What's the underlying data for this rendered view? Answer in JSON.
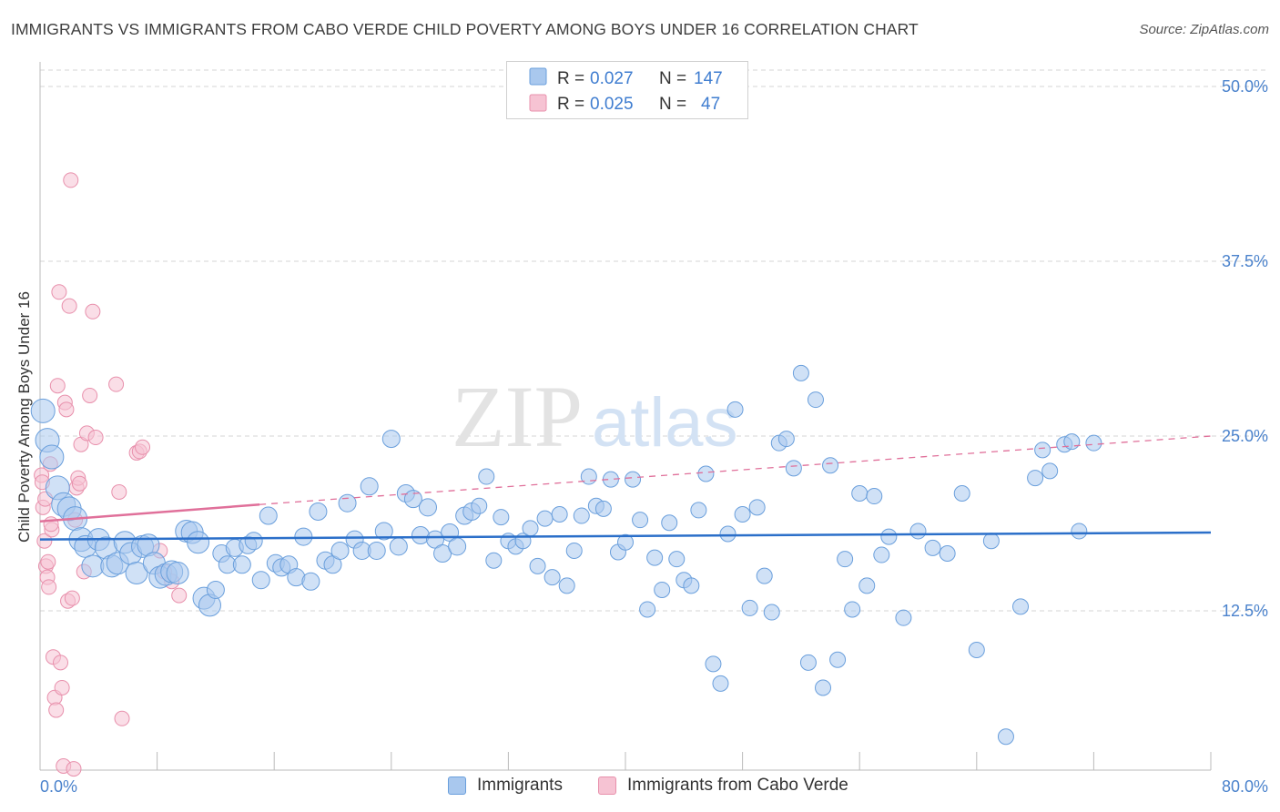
{
  "title": "IMMIGRANTS VS IMMIGRANTS FROM CABO VERDE CHILD POVERTY AMONG BOYS UNDER 16 CORRELATION CHART",
  "source": "Source: ZipAtlas.com",
  "watermark": {
    "zip": "ZIP",
    "atlas": "atlas"
  },
  "colors": {
    "blue_fill": "#a9c8ee",
    "blue_stroke": "#6a9fdc",
    "blue_line": "#2b6fc9",
    "pink_fill": "#f6c3d3",
    "pink_stroke": "#e890ac",
    "pink_line": "#e0709a",
    "tick_label": "#4a82cc",
    "grid": "#d6d6d6"
  },
  "stats_legend": [
    {
      "r_label": "R = ",
      "r_value": "0.027",
      "n_label": "N = ",
      "n_value": "147",
      "color": "blue"
    },
    {
      "r_label": "R = ",
      "r_value": "0.025",
      "n_label": "N = ",
      "n_value": "47",
      "color": "pink"
    }
  ],
  "chart_data": {
    "type": "scatter",
    "title": "IMMIGRANTS VS IMMIGRANTS FROM CABO VERDE CHILD POVERTY AMONG BOYS UNDER 16 CORRELATION CHART",
    "xlabel": "",
    "ylabel": "Child Poverty Among Boys Under 16",
    "xlim": [
      0,
      80
    ],
    "ylim": [
      0,
      52
    ],
    "x_tick_labels": [
      "0.0%",
      "80.0%"
    ],
    "y_ticks": [
      12.5,
      25.0,
      37.5,
      50.0
    ],
    "y_tick_labels": [
      "12.5%",
      "25.0%",
      "37.5%",
      "50.0%"
    ],
    "grid": "horizontal dashed",
    "legend_position": "bottom",
    "series": [
      {
        "name": "Immigrants",
        "color": "blue",
        "trend": {
          "x": [
            0,
            80
          ],
          "y": [
            17.6,
            18.1
          ],
          "dashed": false
        },
        "points": [
          [
            0.2,
            26.8
          ],
          [
            0.5,
            24.7
          ],
          [
            0.8,
            23.5
          ],
          [
            1.2,
            21.3
          ],
          [
            1.6,
            20.1
          ],
          [
            2.0,
            19.8
          ],
          [
            2.4,
            19.1
          ],
          [
            2.8,
            17.6
          ],
          [
            3.1,
            17.1
          ],
          [
            3.6,
            15.7
          ],
          [
            4.0,
            17.6
          ],
          [
            4.5,
            17.0
          ],
          [
            4.9,
            15.7
          ],
          [
            5.3,
            15.9
          ],
          [
            5.8,
            17.4
          ],
          [
            6.2,
            16.6
          ],
          [
            6.6,
            15.2
          ],
          [
            7.0,
            17.1
          ],
          [
            7.4,
            17.2
          ],
          [
            7.8,
            15.9
          ],
          [
            8.2,
            14.9
          ],
          [
            8.6,
            15.1
          ],
          [
            9.0,
            15.3
          ],
          [
            9.4,
            15.2
          ],
          [
            10.0,
            18.2
          ],
          [
            10.4,
            18.1
          ],
          [
            10.8,
            17.4
          ],
          [
            11.2,
            13.4
          ],
          [
            11.6,
            12.9
          ],
          [
            12.0,
            14.0
          ],
          [
            12.4,
            16.6
          ],
          [
            12.8,
            15.8
          ],
          [
            13.3,
            17.0
          ],
          [
            13.8,
            15.8
          ],
          [
            14.2,
            17.2
          ],
          [
            14.6,
            17.5
          ],
          [
            15.1,
            14.7
          ],
          [
            15.6,
            19.3
          ],
          [
            16.1,
            15.9
          ],
          [
            16.5,
            15.6
          ],
          [
            17.0,
            15.8
          ],
          [
            17.5,
            14.9
          ],
          [
            18.0,
            17.8
          ],
          [
            18.5,
            14.6
          ],
          [
            19.0,
            19.6
          ],
          [
            19.5,
            16.1
          ],
          [
            20.0,
            15.8
          ],
          [
            20.5,
            16.8
          ],
          [
            21.0,
            20.2
          ],
          [
            21.5,
            17.6
          ],
          [
            22.0,
            16.8
          ],
          [
            22.5,
            21.4
          ],
          [
            23.0,
            16.8
          ],
          [
            23.5,
            18.2
          ],
          [
            24.0,
            24.8
          ],
          [
            24.5,
            17.1
          ],
          [
            25.0,
            20.9
          ],
          [
            25.5,
            20.5
          ],
          [
            26.0,
            17.9
          ],
          [
            26.5,
            19.9
          ],
          [
            27.0,
            17.6
          ],
          [
            27.5,
            16.6
          ],
          [
            28.0,
            18.1
          ],
          [
            28.5,
            17.1
          ],
          [
            29.0,
            19.3
          ],
          [
            29.5,
            19.6
          ],
          [
            30.0,
            20.0
          ],
          [
            30.5,
            22.1
          ],
          [
            31.0,
            16.1
          ],
          [
            31.5,
            19.2
          ],
          [
            32.0,
            17.5
          ],
          [
            32.5,
            17.1
          ],
          [
            33.0,
            17.5
          ],
          [
            33.5,
            18.4
          ],
          [
            34.0,
            15.7
          ],
          [
            34.5,
            19.1
          ],
          [
            35.0,
            14.9
          ],
          [
            35.5,
            19.4
          ],
          [
            36.0,
            14.3
          ],
          [
            36.5,
            16.8
          ],
          [
            37.0,
            19.3
          ],
          [
            37.5,
            22.1
          ],
          [
            38.0,
            20.0
          ],
          [
            38.5,
            19.8
          ],
          [
            39.0,
            21.9
          ],
          [
            39.5,
            16.7
          ],
          [
            40.0,
            17.4
          ],
          [
            40.5,
            21.9
          ],
          [
            41.0,
            19.0
          ],
          [
            41.5,
            12.6
          ],
          [
            42.0,
            16.3
          ],
          [
            42.5,
            14.0
          ],
          [
            43.0,
            18.8
          ],
          [
            43.5,
            16.2
          ],
          [
            44.0,
            14.7
          ],
          [
            44.5,
            14.3
          ],
          [
            45.0,
            19.7
          ],
          [
            45.5,
            22.3
          ],
          [
            46.0,
            8.7
          ],
          [
            46.5,
            7.3
          ],
          [
            47.0,
            18.0
          ],
          [
            47.5,
            26.9
          ],
          [
            48.0,
            19.4
          ],
          [
            48.5,
            12.7
          ],
          [
            49.0,
            19.9
          ],
          [
            49.5,
            15.0
          ],
          [
            50.0,
            12.4
          ],
          [
            50.5,
            24.5
          ],
          [
            51.0,
            24.8
          ],
          [
            51.5,
            22.7
          ],
          [
            52.0,
            29.5
          ],
          [
            52.5,
            8.8
          ],
          [
            53.0,
            27.6
          ],
          [
            53.5,
            7.0
          ],
          [
            54.0,
            22.9
          ],
          [
            54.5,
            9.0
          ],
          [
            55.0,
            16.2
          ],
          [
            55.5,
            12.6
          ],
          [
            56.0,
            20.9
          ],
          [
            56.5,
            14.3
          ],
          [
            57.0,
            20.7
          ],
          [
            57.5,
            16.5
          ],
          [
            58.0,
            17.8
          ],
          [
            59.0,
            12.0
          ],
          [
            60.0,
            18.2
          ],
          [
            61.0,
            17.0
          ],
          [
            62.0,
            16.6
          ],
          [
            63.0,
            20.9
          ],
          [
            64.0,
            9.7
          ],
          [
            65.0,
            17.5
          ],
          [
            66.0,
            3.5
          ],
          [
            67.0,
            12.8
          ],
          [
            68.0,
            22.0
          ],
          [
            68.5,
            24.0
          ],
          [
            69.0,
            22.5
          ],
          [
            70.0,
            24.4
          ],
          [
            70.5,
            24.6
          ],
          [
            71.0,
            18.2
          ],
          [
            72.0,
            24.5
          ]
        ]
      },
      {
        "name": "Immigrants from Cabo Verde",
        "color": "pink",
        "trend": {
          "x": [
            0,
            15
          ],
          "y": [
            18.9,
            20.1
          ],
          "dashed": false,
          "extension": {
            "x": [
              15,
              80
            ],
            "y": [
              20.1,
              25.0
            ],
            "dashed": true
          }
        },
        "points": [
          [
            0.1,
            22.2
          ],
          [
            0.2,
            19.9
          ],
          [
            0.3,
            17.5
          ],
          [
            0.4,
            15.7
          ],
          [
            0.5,
            14.9
          ],
          [
            0.6,
            14.2
          ],
          [
            0.7,
            23.0
          ],
          [
            0.8,
            18.3
          ],
          [
            0.9,
            9.2
          ],
          [
            1.0,
            6.3
          ],
          [
            1.1,
            5.4
          ],
          [
            1.2,
            28.6
          ],
          [
            1.3,
            35.3
          ],
          [
            1.4,
            8.8
          ],
          [
            1.5,
            7.0
          ],
          [
            1.6,
            1.4
          ],
          [
            1.7,
            27.4
          ],
          [
            1.8,
            26.9
          ],
          [
            1.9,
            13.2
          ],
          [
            2.0,
            34.3
          ],
          [
            2.1,
            43.3
          ],
          [
            2.2,
            13.4
          ],
          [
            2.3,
            1.2
          ],
          [
            2.4,
            19.0
          ],
          [
            2.5,
            21.3
          ],
          [
            2.6,
            22.0
          ],
          [
            2.7,
            21.6
          ],
          [
            2.8,
            24.4
          ],
          [
            3.0,
            15.3
          ],
          [
            3.2,
            25.2
          ],
          [
            3.4,
            27.9
          ],
          [
            3.6,
            33.9
          ],
          [
            3.8,
            24.9
          ],
          [
            5.2,
            28.7
          ],
          [
            5.4,
            21.0
          ],
          [
            5.6,
            4.8
          ],
          [
            6.6,
            23.8
          ],
          [
            6.8,
            23.9
          ],
          [
            7.0,
            24.2
          ],
          [
            8.2,
            16.8
          ],
          [
            8.5,
            15.3
          ],
          [
            9.0,
            14.6
          ],
          [
            9.5,
            13.6
          ],
          [
            0.15,
            21.7
          ],
          [
            0.35,
            20.5
          ],
          [
            0.55,
            16.0
          ],
          [
            0.75,
            18.7
          ]
        ]
      }
    ],
    "annotations": []
  }
}
